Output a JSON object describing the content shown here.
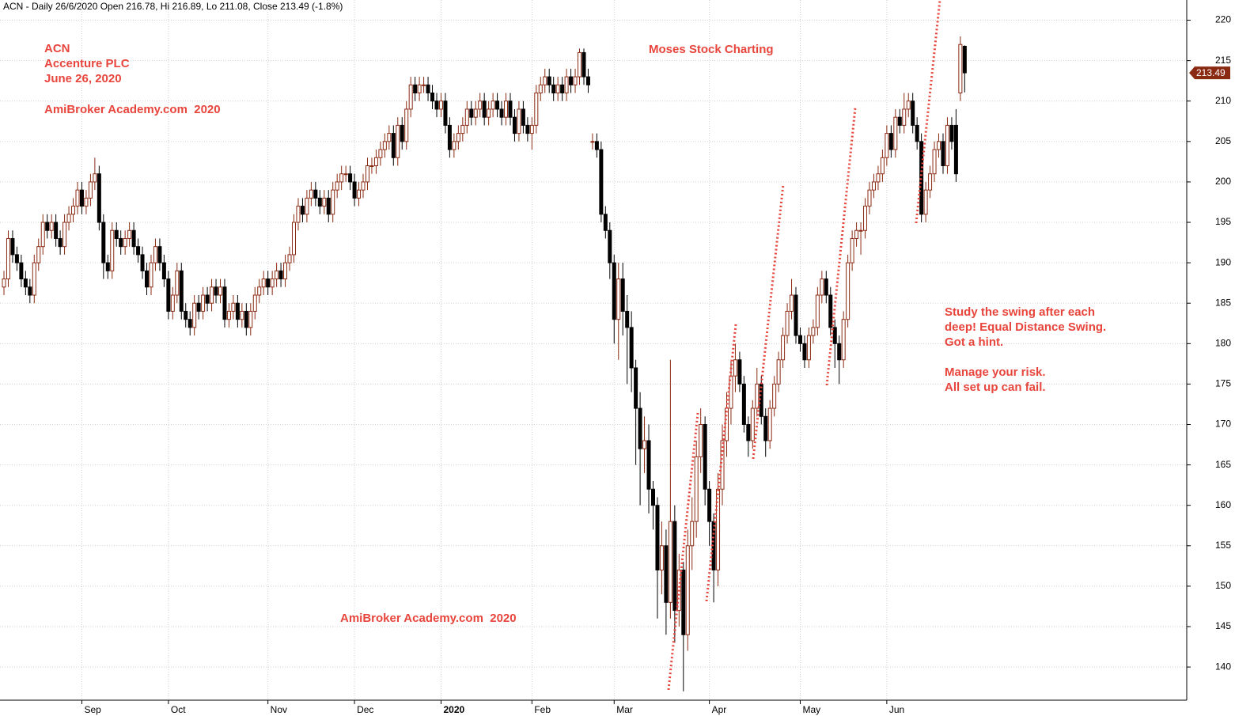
{
  "chart_data": {
    "type": "candlestick",
    "header": "ACN - Daily 26/6/2020 Open 216.78, Hi 216.89, Lo 211.08, Close 213.49 (-1.8%)",
    "annotations": [
      "ACN",
      "Accenture PLC",
      "June 26, 2020",
      "AmiBroker Academy.com  2020",
      "Moses Stock Charting",
      "AmiBroker Academy.com  2020"
    ],
    "note": [
      "Study the swing after each",
      "deep! Equal Distance Swing.",
      "Got a hint.",
      "Manage your risk.",
      "All set up can fail."
    ],
    "last_price": 213.49,
    "ylim": [
      135.9,
      222.5
    ],
    "yticks": [
      140,
      145,
      150,
      155,
      160,
      165,
      170,
      175,
      180,
      185,
      190,
      195,
      200,
      205,
      210,
      215,
      220
    ],
    "grid": true,
    "up_color": "#8b2a12",
    "down_color": "#000000",
    "text_color": "#e8453c",
    "categories": [
      null,
      null,
      null,
      null,
      null,
      null,
      null,
      null,
      null,
      null,
      null,
      null,
      null,
      null,
      null,
      null,
      null,
      null,
      "Sep",
      null,
      null,
      null,
      null,
      null,
      null,
      null,
      null,
      null,
      null,
      null,
      null,
      null,
      null,
      null,
      null,
      null,
      null,
      null,
      "Oct",
      null,
      null,
      null,
      null,
      null,
      null,
      null,
      null,
      null,
      null,
      null,
      null,
      null,
      null,
      null,
      null,
      null,
      null,
      null,
      null,
      null,
      null,
      "Nov",
      null,
      null,
      null,
      null,
      null,
      null,
      null,
      null,
      null,
      null,
      null,
      null,
      null,
      null,
      null,
      null,
      null,
      null,
      null,
      "Dec",
      null,
      null,
      null,
      null,
      null,
      null,
      null,
      null,
      null,
      null,
      null,
      null,
      null,
      null,
      null,
      null,
      null,
      null,
      null,
      "2020",
      null,
      null,
      null,
      null,
      null,
      null,
      null,
      null,
      null,
      null,
      null,
      null,
      null,
      null,
      null,
      null,
      null,
      null,
      null,
      null,
      "Feb",
      null,
      null,
      null,
      null,
      null,
      null,
      null,
      null,
      null,
      null,
      null,
      null,
      null,
      null,
      null,
      null,
      null,
      null,
      "Mar",
      null,
      null,
      null,
      null,
      null,
      null,
      null,
      null,
      null,
      null,
      null,
      null,
      null,
      null,
      null,
      null,
      null,
      null,
      null,
      null,
      null,
      "Apr",
      null,
      null,
      null,
      null,
      null,
      null,
      null,
      null,
      null,
      null,
      null,
      null,
      null,
      null,
      null,
      null,
      null,
      null,
      null,
      null,
      "May",
      null,
      null,
      null,
      null,
      null,
      null,
      null,
      null,
      null,
      null,
      null,
      null,
      null,
      null,
      null,
      null,
      null,
      null,
      null,
      "Jun",
      null,
      null,
      null,
      null,
      null,
      null,
      null,
      null,
      null,
      null,
      null,
      null,
      null,
      null,
      null,
      null,
      null,
      null
    ],
    "candles": [
      [
        187,
        189,
        186,
        188
      ],
      [
        188,
        194,
        187,
        193
      ],
      [
        193,
        194,
        190,
        191
      ],
      [
        191,
        192,
        189,
        190
      ],
      [
        190,
        191,
        187,
        188
      ],
      [
        188,
        189,
        186,
        187
      ],
      [
        187,
        188,
        185,
        186
      ],
      [
        186,
        191,
        185,
        190
      ],
      [
        190,
        193,
        189,
        192
      ],
      [
        192,
        196,
        191,
        195
      ],
      [
        195,
        196,
        193,
        194
      ],
      [
        194,
        196,
        193,
        195
      ],
      [
        195,
        196,
        192,
        193
      ],
      [
        193,
        194,
        191,
        192
      ],
      [
        192,
        196,
        191,
        195
      ],
      [
        195,
        197,
        194,
        196
      ],
      [
        196,
        198,
        195,
        197
      ],
      [
        197,
        200,
        196,
        199
      ],
      [
        199,
        200,
        196,
        197
      ],
      [
        197,
        199,
        196,
        198
      ],
      [
        198,
        201,
        197,
        200
      ],
      [
        200,
        203,
        199,
        201
      ],
      [
        201,
        202,
        194,
        195
      ],
      [
        195,
        196,
        188,
        190
      ],
      [
        190,
        191,
        188,
        189
      ],
      [
        189,
        195,
        188,
        194
      ],
      [
        194,
        195,
        192,
        193
      ],
      [
        193,
        194,
        191,
        192
      ],
      [
        192,
        194,
        191,
        193
      ],
      [
        193,
        195,
        192,
        194
      ],
      [
        194,
        195,
        191,
        192
      ],
      [
        192,
        193,
        190,
        191
      ],
      [
        191,
        192,
        188,
        189
      ],
      [
        189,
        190,
        186,
        187
      ],
      [
        187,
        191,
        186,
        190
      ],
      [
        190,
        193,
        189,
        192
      ],
      [
        192,
        193,
        189,
        190
      ],
      [
        190,
        191,
        187,
        188
      ],
      [
        188,
        189,
        183,
        184
      ],
      [
        184,
        187,
        183,
        186
      ],
      [
        186,
        190,
        185,
        189
      ],
      [
        189,
        190,
        183,
        184
      ],
      [
        184,
        185,
        182,
        183
      ],
      [
        183,
        184,
        181,
        182
      ],
      [
        182,
        186,
        181,
        185
      ],
      [
        185,
        186,
        183,
        184
      ],
      [
        184,
        187,
        183,
        186
      ],
      [
        186,
        187,
        184,
        185
      ],
      [
        185,
        188,
        184,
        187
      ],
      [
        187,
        188,
        185,
        186
      ],
      [
        186,
        188,
        185,
        187
      ],
      [
        187,
        188,
        182,
        183
      ],
      [
        183,
        185,
        182,
        184
      ],
      [
        184,
        186,
        183,
        185
      ],
      [
        185,
        186,
        182,
        183
      ],
      [
        183,
        185,
        182,
        184
      ],
      [
        184,
        185,
        181,
        182
      ],
      [
        182,
        185,
        181,
        184
      ],
      [
        184,
        187,
        183,
        186
      ],
      [
        186,
        188,
        185,
        187
      ],
      [
        187,
        189,
        186,
        188
      ],
      [
        188,
        189,
        186,
        187
      ],
      [
        187,
        189,
        186,
        188
      ],
      [
        188,
        190,
        187,
        189
      ],
      [
        189,
        190,
        187,
        188
      ],
      [
        188,
        191,
        187,
        190
      ],
      [
        190,
        192,
        189,
        191
      ],
      [
        191,
        196,
        190,
        195
      ],
      [
        195,
        198,
        194,
        197
      ],
      [
        197,
        198,
        195,
        196
      ],
      [
        196,
        199,
        195,
        198
      ],
      [
        198,
        200,
        197,
        199
      ],
      [
        199,
        200,
        197,
        198
      ],
      [
        198,
        199,
        196,
        197
      ],
      [
        197,
        199,
        196,
        198
      ],
      [
        198,
        199,
        195,
        196
      ],
      [
        196,
        200,
        195,
        199
      ],
      [
        199,
        201,
        198,
        200
      ],
      [
        200,
        202,
        199,
        201
      ],
      [
        201,
        202,
        200,
        201
      ],
      [
        201,
        202,
        199,
        200
      ],
      [
        200,
        201,
        197,
        198
      ],
      [
        198,
        200,
        197,
        199
      ],
      [
        199,
        201,
        198,
        200
      ],
      [
        200,
        203,
        199,
        202
      ],
      [
        202,
        203,
        201,
        202
      ],
      [
        202,
        204,
        201,
        203
      ],
      [
        203,
        205,
        202,
        204
      ],
      [
        204,
        206,
        203,
        205
      ],
      [
        205,
        207,
        204,
        206
      ],
      [
        206,
        207,
        202,
        203
      ],
      [
        203,
        208,
        202,
        207
      ],
      [
        207,
        208,
        204,
        205
      ],
      [
        205,
        210,
        204,
        209
      ],
      [
        209,
        213,
        208,
        212
      ],
      [
        212,
        213,
        210,
        211
      ],
      [
        211,
        213,
        210,
        212
      ],
      [
        212,
        213,
        211,
        212
      ],
      [
        212,
        213,
        210,
        211
      ],
      [
        211,
        212,
        209,
        210
      ],
      [
        210,
        211,
        208,
        209
      ],
      [
        209,
        211,
        208,
        210
      ],
      [
        210,
        211,
        206,
        207
      ],
      [
        207,
        208,
        203,
        204
      ],
      [
        204,
        206,
        203,
        205
      ],
      [
        205,
        207,
        204,
        206
      ],
      [
        206,
        208,
        205,
        207
      ],
      [
        207,
        210,
        206,
        209
      ],
      [
        209,
        210,
        207,
        208
      ],
      [
        208,
        210,
        207,
        209
      ],
      [
        209,
        211,
        208,
        210
      ],
      [
        210,
        211,
        207,
        208
      ],
      [
        208,
        210,
        207,
        209
      ],
      [
        209,
        211,
        208,
        210
      ],
      [
        210,
        211,
        208,
        209
      ],
      [
        209,
        210,
        207,
        208
      ],
      [
        208,
        211,
        207,
        210
      ],
      [
        210,
        211,
        207,
        208
      ],
      [
        208,
        209,
        205,
        206
      ],
      [
        206,
        210,
        205,
        209
      ],
      [
        209,
        210,
        206,
        207
      ],
      [
        207,
        208,
        205,
        206
      ],
      [
        206,
        208,
        204,
        207
      ],
      [
        207,
        212,
        206,
        211
      ],
      [
        211,
        213,
        210,
        212
      ],
      [
        212,
        214,
        211,
        213
      ],
      [
        213,
        214,
        211,
        212
      ],
      [
        212,
        213,
        210,
        211
      ],
      [
        211,
        213,
        210,
        212
      ],
      [
        212,
        213,
        210,
        211
      ],
      [
        211,
        214,
        210,
        213
      ],
      [
        213,
        214,
        211,
        212
      ],
      [
        212,
        214,
        211,
        213
      ],
      [
        213,
        216.5,
        212,
        216
      ],
      [
        216,
        216.5,
        212,
        213
      ],
      [
        213,
        214,
        211,
        212
      ],
      [
        205,
        206,
        204,
        205
      ],
      [
        205,
        206,
        203,
        204
      ],
      [
        204,
        205,
        195,
        196
      ],
      [
        196,
        197,
        193,
        194
      ],
      [
        194,
        195,
        188,
        190
      ],
      [
        190,
        191,
        180,
        183
      ],
      [
        183,
        190,
        178,
        188
      ],
      [
        188,
        190,
        181,
        184
      ],
      [
        184,
        186,
        175,
        182
      ],
      [
        182,
        184,
        174,
        177
      ],
      [
        177,
        178,
        165,
        172
      ],
      [
        172,
        174,
        160,
        167
      ],
      [
        167,
        171,
        164,
        168
      ],
      [
        168,
        170,
        159,
        162
      ],
      [
        162,
        163,
        157,
        160
      ],
      [
        160,
        161,
        146,
        152
      ],
      [
        152,
        158,
        149,
        155
      ],
      [
        155,
        157,
        144,
        148
      ],
      [
        148,
        178,
        146,
        158
      ],
      [
        158,
        160,
        143,
        147
      ],
      [
        147,
        154,
        145,
        152
      ],
      [
        152,
        153,
        137,
        144
      ],
      [
        144,
        157,
        142,
        155
      ],
      [
        155,
        161,
        152,
        158
      ],
      [
        158,
        168,
        156,
        166
      ],
      [
        166,
        172,
        164,
        170
      ],
      [
        170,
        171,
        160,
        162
      ],
      [
        162,
        163,
        155,
        158
      ],
      [
        158,
        159,
        148,
        152
      ],
      [
        152,
        164,
        150,
        162
      ],
      [
        162,
        170,
        160,
        168
      ],
      [
        168,
        174,
        166,
        172
      ],
      [
        172,
        178,
        170,
        176
      ],
      [
        176,
        180,
        174,
        178
      ],
      [
        178,
        179,
        174,
        175
      ],
      [
        175,
        176,
        169,
        170
      ],
      [
        170,
        171,
        166,
        168
      ],
      [
        168,
        173,
        167,
        172
      ],
      [
        172,
        177,
        171,
        175
      ],
      [
        175,
        176,
        170,
        171
      ],
      [
        171,
        172,
        166,
        168
      ],
      [
        168,
        173,
        167,
        172
      ],
      [
        172,
        176,
        171,
        175
      ],
      [
        175,
        179,
        174,
        178
      ],
      [
        178,
        182,
        177,
        181
      ],
      [
        181,
        185,
        180,
        184
      ],
      [
        184,
        188,
        183,
        186
      ],
      [
        186,
        187,
        180,
        181
      ],
      [
        181,
        182,
        179,
        180
      ],
      [
        180,
        181,
        177,
        178
      ],
      [
        178,
        182,
        177,
        181
      ],
      [
        181,
        183,
        180,
        182
      ],
      [
        182,
        187,
        181,
        186
      ],
      [
        186,
        189,
        185,
        188
      ],
      [
        188,
        189,
        185,
        186
      ],
      [
        186,
        187,
        181,
        182
      ],
      [
        182,
        183,
        177,
        180
      ],
      [
        180,
        181,
        175,
        178
      ],
      [
        178,
        184,
        177,
        183
      ],
      [
        183,
        191,
        182,
        190
      ],
      [
        190,
        194,
        189,
        193
      ],
      [
        193,
        195,
        192,
        194
      ],
      [
        194,
        195,
        191,
        194
      ],
      [
        194,
        198,
        193,
        197
      ],
      [
        197,
        200,
        196,
        199
      ],
      [
        199,
        201,
        198,
        200
      ],
      [
        200,
        202,
        199,
        201
      ],
      [
        201,
        204,
        200,
        203
      ],
      [
        203,
        207,
        202,
        206
      ],
      [
        206,
        207,
        203,
        204
      ],
      [
        204,
        209,
        203,
        208
      ],
      [
        208,
        209,
        206,
        207
      ],
      [
        207,
        211,
        206,
        209
      ],
      [
        209,
        211,
        208,
        210
      ],
      [
        210,
        211,
        206,
        207
      ],
      [
        207,
        208,
        204,
        205
      ],
      [
        205,
        206,
        195,
        196
      ],
      [
        196,
        200,
        195,
        199
      ],
      [
        199,
        202,
        198,
        201
      ],
      [
        201,
        205,
        200,
        204
      ],
      [
        204,
        206,
        203,
        205
      ],
      [
        205,
        206,
        201,
        202
      ],
      [
        202,
        208,
        201,
        207
      ],
      [
        207,
        208,
        204,
        205
      ],
      [
        207,
        209,
        200,
        201
      ],
      [
        211,
        218,
        210,
        217
      ],
      [
        216.78,
        216.89,
        211.08,
        213.49
      ]
    ]
  }
}
